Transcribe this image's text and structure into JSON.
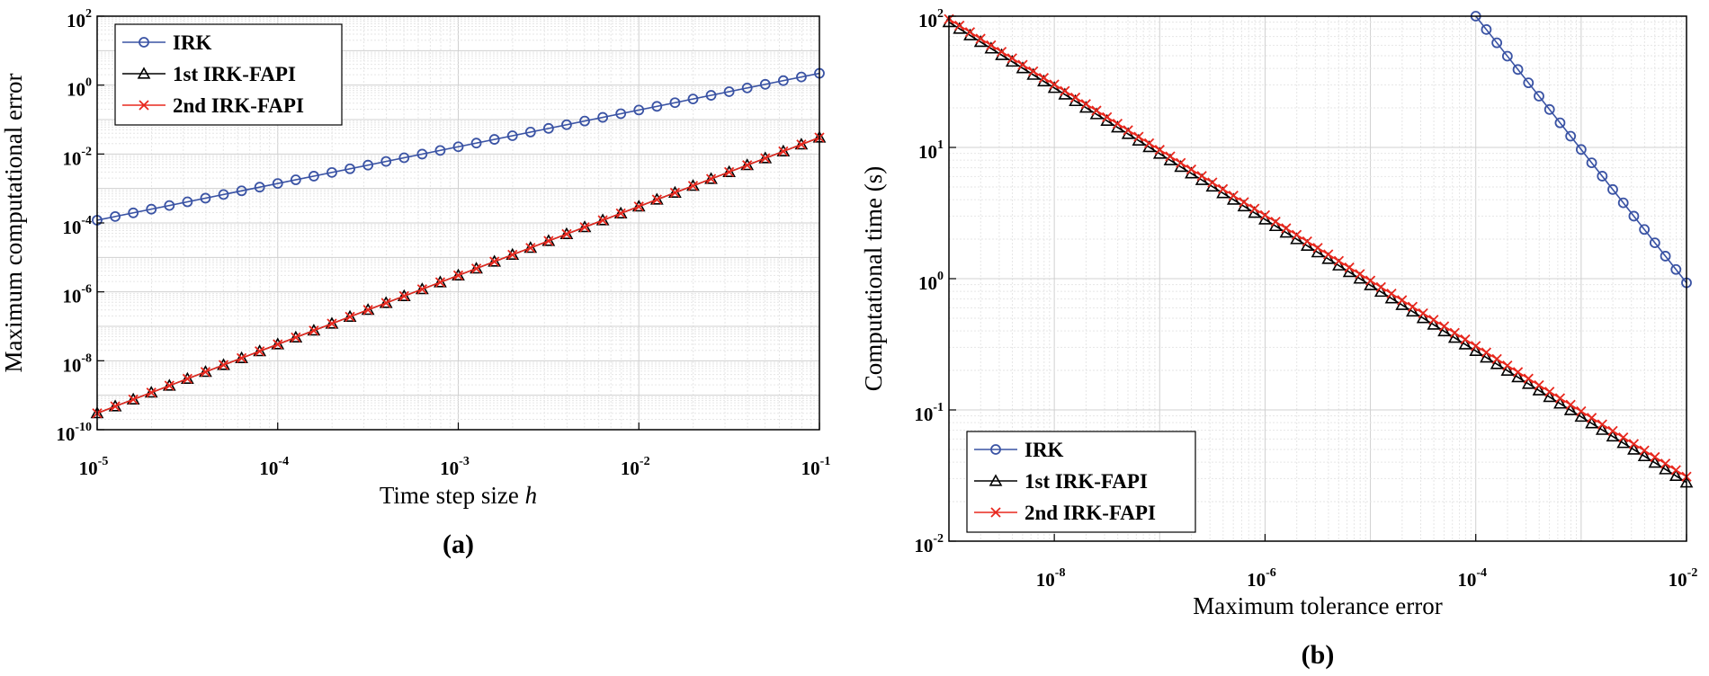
{
  "chart_data": [
    {
      "type": "line",
      "panel_label": "(a)",
      "xscale": "log",
      "yscale": "log",
      "xlabel": "Time step size",
      "xlabel_var": "h",
      "ylabel": "Maximum computational error",
      "xlim": [
        1e-05,
        0.1
      ],
      "ylim": [
        1e-10,
        100
      ],
      "grid": true,
      "legend": {
        "location": "top-left"
      },
      "xticks": [
        {
          "base": "10",
          "exp": "-5"
        },
        {
          "base": "10",
          "exp": "-4"
        },
        {
          "base": "10",
          "exp": "-3"
        },
        {
          "base": "10",
          "exp": "-2"
        },
        {
          "base": "10",
          "exp": "-1"
        }
      ],
      "yticks": [
        {
          "base": "10",
          "exp": "-10"
        },
        {
          "base": "10",
          "exp": "-8"
        },
        {
          "base": "10",
          "exp": "-6"
        },
        {
          "base": "10",
          "exp": "-4"
        },
        {
          "base": "10",
          "exp": "-2"
        },
        {
          "base": "10",
          "exp": "0"
        },
        {
          "base": "10",
          "exp": "2"
        }
      ],
      "series": [
        {
          "name": "IRK",
          "color": "#3a53a4",
          "marker": "circle",
          "line_from": [
            1e-05,
            0.00012
          ],
          "line_to": [
            0.1,
            2.2
          ],
          "marker_count": 41
        },
        {
          "name": "1st IRK-FAPI",
          "color": "#000000",
          "marker": "triangle",
          "line_from": [
            1e-05,
            3e-10
          ],
          "line_to": [
            0.1,
            0.03
          ],
          "marker_count": 41
        },
        {
          "name": "2nd IRK-FAPI",
          "color": "#e8281e",
          "marker": "x",
          "line_from": [
            1e-05,
            3e-10
          ],
          "line_to": [
            0.1,
            0.03
          ],
          "marker_count": 41
        }
      ]
    },
    {
      "type": "line",
      "panel_label": "(b)",
      "xscale": "log",
      "yscale": "log",
      "xlabel": "Maximum tolerance error",
      "ylabel": "Computational time (s)",
      "xlim": [
        1e-09,
        0.01
      ],
      "ylim": [
        0.01,
        100
      ],
      "grid": true,
      "legend": {
        "location": "bottom-left"
      },
      "xticks": [
        {
          "base": "10",
          "exp": "-8"
        },
        {
          "base": "10",
          "exp": "-6"
        },
        {
          "base": "10",
          "exp": "-4"
        },
        {
          "base": "10",
          "exp": "-2"
        }
      ],
      "yticks": [
        {
          "base": "10",
          "exp": "-2"
        },
        {
          "base": "10",
          "exp": "-1"
        },
        {
          "base": "10",
          "exp": "0"
        },
        {
          "base": "10",
          "exp": "1"
        },
        {
          "base": "10",
          "exp": "2"
        }
      ],
      "series": [
        {
          "name": "IRK",
          "color": "#3a53a4",
          "marker": "circle",
          "line_from": [
            0.0001,
            100
          ],
          "line_to": [
            0.01,
            0.93
          ],
          "marker_count": 21
        },
        {
          "name": "1st IRK-FAPI",
          "color": "#000000",
          "marker": "triangle",
          "line_from": [
            1e-09,
            90
          ],
          "line_to": [
            0.01,
            0.028
          ],
          "marker_count": 71
        },
        {
          "name": "2nd IRK-FAPI",
          "color": "#e8281e",
          "marker": "x",
          "line_from": [
            1e-09,
            95
          ],
          "line_to": [
            0.01,
            0.031
          ],
          "marker_count": 71
        }
      ]
    }
  ]
}
